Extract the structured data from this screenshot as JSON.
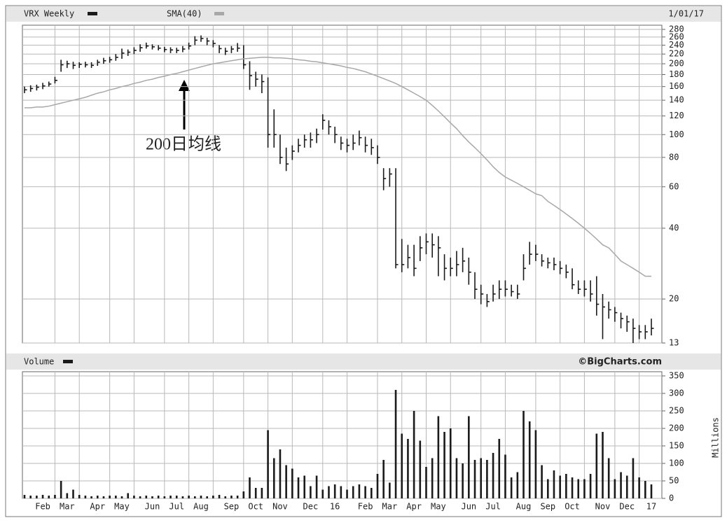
{
  "chart_data": [
    {
      "type": "ohlc",
      "date": "1/01/17",
      "annotation": "200日均线",
      "log": true,
      "grid": true,
      "ylim": [
        13,
        280
      ],
      "yticks": [
        280,
        260,
        240,
        220,
        200,
        180,
        160,
        140,
        120,
        100,
        80,
        60,
        40,
        20,
        13
      ],
      "series": [
        {
          "name": "VRX Weekly",
          "color": "#1a1a1a",
          "high": [
            160,
            162,
            163,
            166,
            168,
            176,
            208,
            206,
            204,
            203,
            204,
            203,
            208,
            212,
            214,
            220,
            232,
            230,
            235,
            242,
            246,
            242,
            240,
            236,
            235,
            234,
            238,
            246,
            262,
            264,
            258,
            252,
            240,
            234,
            238,
            245,
            240,
            205,
            185,
            180,
            175,
            128,
            100,
            88,
            90,
            96,
            100,
            102,
            106,
            122,
            115,
            108,
            98,
            96,
            100,
            104,
            98,
            96,
            90,
            72,
            72,
            72,
            36,
            34,
            34,
            37,
            38,
            38,
            37,
            31,
            30,
            32,
            33,
            30,
            26,
            23,
            21,
            23,
            24,
            24,
            23,
            23,
            31,
            35,
            34,
            31,
            30,
            30,
            29,
            28,
            27,
            24,
            24,
            24,
            25,
            21,
            19.5,
            18.5,
            17.5,
            17,
            16.5,
            15.5,
            15.5,
            16.5
          ],
          "low": [
            150,
            152,
            154,
            156,
            160,
            165,
            185,
            192,
            190,
            192,
            193,
            192,
            196,
            200,
            202,
            206,
            210,
            216,
            220,
            225,
            232,
            230,
            228,
            224,
            222,
            222,
            224,
            230,
            240,
            248,
            240,
            235,
            222,
            218,
            222,
            225,
            190,
            155,
            160,
            150,
            88,
            88,
            75,
            70,
            78,
            84,
            88,
            88,
            92,
            105,
            100,
            92,
            86,
            84,
            86,
            90,
            84,
            82,
            75,
            58,
            60,
            27,
            26,
            27,
            25,
            29,
            31,
            30,
            25,
            24,
            25,
            25,
            26,
            23,
            20,
            19,
            18.5,
            19.5,
            20,
            20.5,
            20.5,
            20,
            24,
            28,
            29,
            27.5,
            27,
            26.5,
            25.5,
            24.5,
            22,
            21,
            20.5,
            19.5,
            17,
            13.5,
            16.5,
            16,
            15,
            14.5,
            13,
            13.5,
            13.5,
            14
          ],
          "close": [
            155,
            157,
            159,
            161,
            164,
            170,
            198,
            200,
            197,
            199,
            198,
            197,
            203,
            206,
            208,
            213,
            222,
            224,
            228,
            234,
            238,
            236,
            233,
            230,
            229,
            228,
            231,
            238,
            252,
            256,
            250,
            244,
            232,
            226,
            231,
            233,
            198,
            178,
            172,
            168,
            100,
            100,
            80,
            75,
            85,
            90,
            95,
            95,
            100,
            115,
            108,
            100,
            92,
            90,
            92,
            97,
            90,
            88,
            80,
            65,
            68,
            28,
            28,
            30,
            27,
            33,
            35,
            34,
            33,
            27,
            27,
            28,
            29,
            26,
            22,
            21,
            19.5,
            21,
            22,
            22,
            21.5,
            21,
            27,
            31,
            31,
            29,
            28.5,
            28,
            27,
            26,
            23,
            22,
            22,
            21,
            19,
            18.5,
            18,
            17.5,
            16.5,
            16,
            15,
            14.5,
            14.5,
            15
          ]
        },
        {
          "name": "SMA(40)",
          "color": "#a8a8a8",
          "values": [
            130,
            130,
            131,
            131,
            132,
            134,
            136,
            138,
            140,
            142,
            144,
            147,
            150,
            152,
            155,
            157,
            160,
            162,
            165,
            167,
            170,
            172,
            175,
            177,
            180,
            182,
            185,
            188,
            191,
            194,
            197,
            200,
            202,
            204,
            206,
            208,
            210,
            211,
            212,
            213,
            213,
            212,
            212,
            211,
            210,
            208,
            207,
            205,
            204,
            202,
            200,
            198,
            196,
            193,
            191,
            188,
            185,
            181,
            177,
            173,
            169,
            165,
            160,
            155,
            150,
            145,
            140,
            133,
            126,
            119,
            112,
            106,
            99,
            93,
            88,
            83,
            78,
            73,
            69,
            66,
            64,
            62,
            60,
            58,
            56,
            55,
            52,
            50,
            48,
            46,
            44,
            42,
            40,
            38,
            36,
            34,
            33,
            31,
            29,
            28,
            27,
            26,
            25,
            25
          ]
        }
      ]
    },
    {
      "type": "bar",
      "ylabel": "Millions",
      "credit": "©BigCharts.com",
      "grid": true,
      "ylim": [
        0,
        350
      ],
      "yticks": [
        0,
        50,
        100,
        150,
        200,
        250,
        300,
        350
      ],
      "categories": [
        null,
        null,
        null,
        "Feb",
        null,
        null,
        null,
        "Mar",
        null,
        null,
        null,
        null,
        "Apr",
        null,
        null,
        null,
        "May",
        null,
        null,
        null,
        null,
        "Jun",
        null,
        null,
        null,
        "Jul",
        null,
        null,
        null,
        "Aug",
        null,
        null,
        null,
        null,
        "Sep",
        null,
        null,
        null,
        "Oct",
        null,
        null,
        null,
        "Nov",
        null,
        null,
        null,
        null,
        "Dec",
        null,
        null,
        null,
        "16",
        null,
        null,
        null,
        null,
        "Feb",
        null,
        null,
        null,
        "Mar",
        null,
        null,
        null,
        "Apr",
        null,
        null,
        null,
        "May",
        null,
        null,
        null,
        null,
        "Jun",
        null,
        null,
        null,
        "Jul",
        null,
        null,
        null,
        null,
        "Aug",
        null,
        null,
        null,
        "Sep",
        null,
        null,
        null,
        "Oct",
        null,
        null,
        null,
        null,
        "Nov",
        null,
        null,
        null,
        "Dec",
        null,
        null,
        null,
        "17"
      ],
      "series": [
        {
          "name": "Volume",
          "color": "#1a1a1a",
          "values": [
            10,
            8,
            8,
            10,
            8,
            10,
            50,
            15,
            25,
            10,
            8,
            6,
            8,
            6,
            8,
            8,
            6,
            15,
            8,
            6,
            8,
            6,
            8,
            6,
            8,
            8,
            6,
            8,
            6,
            8,
            6,
            8,
            10,
            6,
            8,
            8,
            20,
            60,
            30,
            30,
            195,
            115,
            140,
            95,
            85,
            60,
            65,
            35,
            65,
            25,
            35,
            40,
            35,
            25,
            35,
            40,
            35,
            30,
            70,
            110,
            45,
            310,
            185,
            170,
            250,
            165,
            90,
            115,
            235,
            190,
            200,
            115,
            100,
            235,
            110,
            115,
            110,
            130,
            170,
            125,
            60,
            75,
            250,
            220,
            195,
            95,
            55,
            80,
            65,
            70,
            60,
            55,
            55,
            70,
            185,
            190,
            115,
            55,
            75,
            65,
            115,
            60,
            50,
            40
          ]
        }
      ]
    }
  ]
}
